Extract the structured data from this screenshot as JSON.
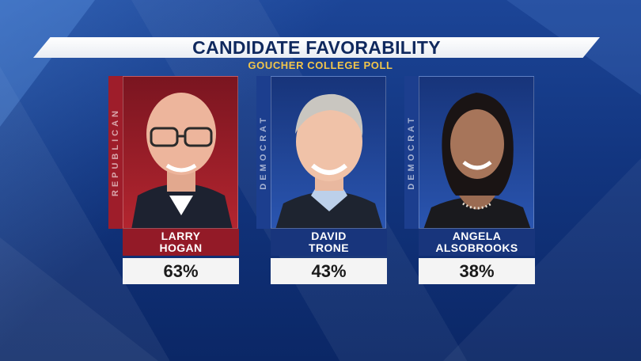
{
  "header": {
    "title": "CANDIDATE FAVORABILITY",
    "subtitle": "GOUCHER COLLEGE POLL"
  },
  "candidates": [
    {
      "party": "REPUBLICAN",
      "first": "LARRY",
      "last": "HOGAN",
      "favorability": "63%",
      "party_color": "#9e1d2a"
    },
    {
      "party": "DEMOCRAT",
      "first": "DAVID",
      "last": "TRONE",
      "favorability": "43%",
      "party_color": "#1c3e8e"
    },
    {
      "party": "DEMOCRAT",
      "first": "ANGELA",
      "last": "ALSOBROOKS",
      "favorability": "38%",
      "party_color": "#1c3e8e"
    }
  ]
}
